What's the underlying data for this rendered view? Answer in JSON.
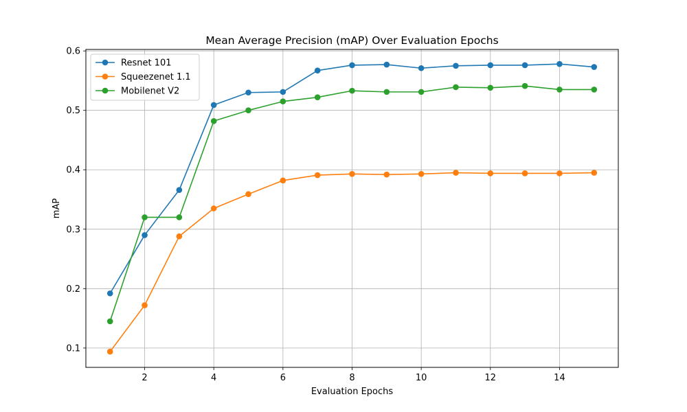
{
  "chart_data": {
    "type": "line",
    "title": "Mean Average Precision (mAP) Over Evaluation Epochs",
    "xlabel": "Evaluation Epochs",
    "ylabel": "mAP",
    "xlim": [
      0.3,
      15.7
    ],
    "ylim": [
      0.0675,
      0.6025
    ],
    "xticks": [
      2,
      4,
      6,
      8,
      10,
      12,
      14
    ],
    "yticks": [
      0.1,
      0.2,
      0.3,
      0.4,
      0.5,
      0.6
    ],
    "grid": true,
    "legend_position": "upper-left",
    "x": [
      1,
      2,
      3,
      4,
      5,
      6,
      7,
      8,
      9,
      10,
      11,
      12,
      13,
      14,
      15
    ],
    "series": [
      {
        "name": "Resnet 101",
        "color": "#1f77b4",
        "marker": "circle",
        "values": [
          0.192,
          0.29,
          0.366,
          0.509,
          0.53,
          0.531,
          0.567,
          0.576,
          0.577,
          0.571,
          0.575,
          0.576,
          0.576,
          0.578,
          0.573
        ]
      },
      {
        "name": "Squeezenet 1.1",
        "color": "#ff7f0e",
        "marker": "circle",
        "values": [
          0.094,
          0.172,
          0.288,
          0.335,
          0.359,
          0.382,
          0.391,
          0.393,
          0.392,
          0.393,
          0.395,
          0.394,
          0.394,
          0.394,
          0.395
        ]
      },
      {
        "name": "Mobilenet V2",
        "color": "#2ca02c",
        "marker": "circle",
        "values": [
          0.145,
          0.32,
          0.32,
          0.482,
          0.5,
          0.515,
          0.522,
          0.533,
          0.531,
          0.531,
          0.539,
          0.538,
          0.541,
          0.535,
          0.535
        ]
      }
    ]
  }
}
